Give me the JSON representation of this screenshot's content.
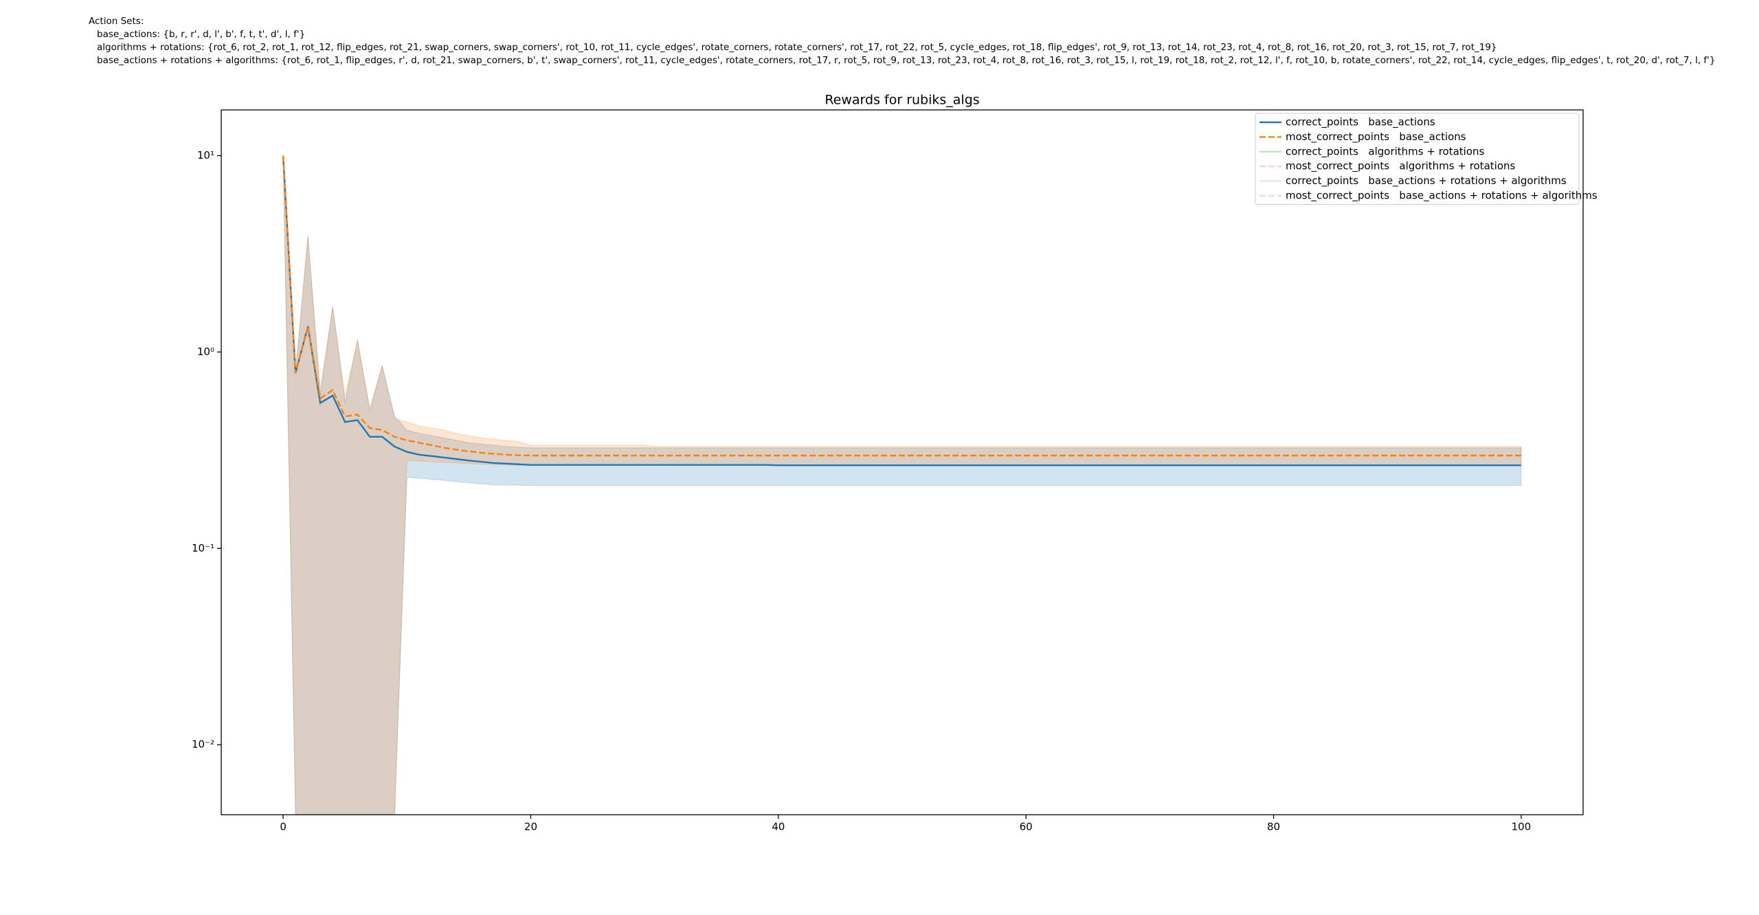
{
  "header": {
    "title": "Action Sets:",
    "lines": [
      "base_actions: {b, r, r', d, l', b', f, t, t', d', l, f'}",
      "algorithms + rotations: {rot_6, rot_2, rot_1, rot_12, flip_edges, rot_21, swap_corners, swap_corners', rot_10, rot_11, cycle_edges', rotate_corners, rotate_corners', rot_17, rot_22, rot_5, cycle_edges, rot_18, flip_edges', rot_9, rot_13, rot_14, rot_23, rot_4, rot_8, rot_16, rot_20, rot_3, rot_15, rot_7, rot_19}",
      "base_actions + rotations + algorithms: {rot_6, rot_1, flip_edges, r', d, rot_21, swap_corners, b', t', swap_corners', rot_11, cycle_edges', rotate_corners, rot_17, r, rot_5, rot_9, rot_13, rot_23, rot_4, rot_8, rot_16, rot_3, rot_15, l, rot_19, rot_18, rot_2, rot_12, l', f, rot_10, b, rotate_corners', rot_22, rot_14, cycle_edges, flip_edges', t, rot_20, d', rot_7, l, f'}"
    ]
  },
  "chart_data": {
    "type": "line",
    "title": "Rewards for rubiks_algs",
    "log_y": true,
    "legend": "upper right",
    "xlim": [
      -5,
      105
    ],
    "xticks": [
      0,
      20,
      40,
      60,
      80,
      100
    ],
    "ylim": [
      0.0044,
      17.1
    ],
    "yticks": [
      {
        "value": 10,
        "label": "10¹"
      },
      {
        "value": 1,
        "label": "10⁰"
      },
      {
        "value": 0.1,
        "label": "10⁻¹"
      },
      {
        "value": 0.01,
        "label": "10⁻²"
      }
    ],
    "x": [
      0,
      1,
      2,
      3,
      4,
      5,
      6,
      7,
      8,
      9,
      10,
      11,
      12,
      13,
      14,
      15,
      16,
      17,
      18,
      19,
      20,
      21,
      22,
      23,
      24,
      25,
      26,
      27,
      28,
      29,
      30,
      31,
      32,
      33,
      34,
      35,
      36,
      37,
      38,
      39,
      40,
      41,
      42,
      43,
      44,
      45,
      46,
      47,
      48,
      49,
      50,
      51,
      52,
      53,
      54,
      55,
      56,
      57,
      58,
      59,
      60,
      61,
      62,
      63,
      64,
      65,
      66,
      67,
      68,
      69,
      70,
      71,
      72,
      73,
      74,
      75,
      76,
      77,
      78,
      79,
      80,
      81,
      82,
      83,
      84,
      85,
      86,
      87,
      88,
      89,
      90,
      91,
      92,
      93,
      94,
      95,
      96,
      97,
      98,
      99,
      100
    ],
    "series": [
      {
        "name": "correct_points   base_actions",
        "color": "#1f77b4",
        "linestyle": "solid",
        "alpha": 1,
        "values": [
          10,
          0.78,
          1.35,
          0.55,
          0.6,
          0.44,
          0.45,
          0.37,
          0.37,
          0.33,
          0.31,
          0.3,
          0.295,
          0.29,
          0.285,
          0.28,
          0.276,
          0.272,
          0.27,
          0.268,
          0.266,
          0.266,
          0.266,
          0.266,
          0.266,
          0.266,
          0.266,
          0.266,
          0.266,
          0.266,
          0.266,
          0.266,
          0.266,
          0.266,
          0.266,
          0.266,
          0.266,
          0.266,
          0.266,
          0.266,
          0.265,
          0.265,
          0.265,
          0.265,
          0.265,
          0.265,
          0.265,
          0.265,
          0.265,
          0.265,
          0.265,
          0.265,
          0.265,
          0.265,
          0.265,
          0.265,
          0.265,
          0.265,
          0.265,
          0.265,
          0.265,
          0.265,
          0.265,
          0.265,
          0.265,
          0.265,
          0.265,
          0.265,
          0.265,
          0.265,
          0.265,
          0.265,
          0.265,
          0.265,
          0.265,
          0.265,
          0.265,
          0.265,
          0.265,
          0.265,
          0.265,
          0.265,
          0.265,
          0.265,
          0.265,
          0.265,
          0.265,
          0.265,
          0.265,
          0.265,
          0.265,
          0.265,
          0.265,
          0.265,
          0.265,
          0.265,
          0.265,
          0.265,
          0.265,
          0.265,
          0.265
        ],
        "lower": [
          10,
          0,
          0,
          0,
          0,
          0,
          0,
          0,
          0,
          0,
          0.23,
          0.228,
          0.225,
          0.222,
          0.219,
          0.216,
          0.213,
          0.211,
          0.21,
          0.21,
          0.209,
          0.209,
          0.209,
          0.209,
          0.209,
          0.209,
          0.209,
          0.209,
          0.209,
          0.209,
          0.209,
          0.209,
          0.209,
          0.209,
          0.209,
          0.209,
          0.209,
          0.209,
          0.209,
          0.209,
          0.209,
          0.209,
          0.209,
          0.209,
          0.209,
          0.209,
          0.209,
          0.209,
          0.209,
          0.209,
          0.209,
          0.209,
          0.209,
          0.209,
          0.209,
          0.209,
          0.209,
          0.209,
          0.209,
          0.209,
          0.209,
          0.209,
          0.209,
          0.209,
          0.209,
          0.209,
          0.209,
          0.209,
          0.209,
          0.209,
          0.209,
          0.209,
          0.209,
          0.209,
          0.209,
          0.209,
          0.209,
          0.209,
          0.209,
          0.209,
          0.209,
          0.209,
          0.209,
          0.209,
          0.209,
          0.209,
          0.209,
          0.209,
          0.209,
          0.209,
          0.209,
          0.209,
          0.209,
          0.209,
          0.209,
          0.209,
          0.209,
          0.209,
          0.209,
          0.209,
          0.209
        ],
        "upper": [
          10,
          0.78,
          3.9,
          0.6,
          1.7,
          0.55,
          1.15,
          0.5,
          0.85,
          0.47,
          0.4,
          0.385,
          0.375,
          0.365,
          0.355,
          0.345,
          0.34,
          0.335,
          0.33,
          0.327,
          0.325,
          0.325,
          0.325,
          0.325,
          0.325,
          0.325,
          0.325,
          0.325,
          0.325,
          0.325,
          0.325,
          0.325,
          0.325,
          0.325,
          0.325,
          0.325,
          0.325,
          0.325,
          0.325,
          0.325,
          0.325,
          0.325,
          0.325,
          0.325,
          0.325,
          0.325,
          0.325,
          0.325,
          0.325,
          0.325,
          0.325,
          0.325,
          0.325,
          0.325,
          0.325,
          0.325,
          0.325,
          0.325,
          0.325,
          0.325,
          0.325,
          0.325,
          0.325,
          0.325,
          0.325,
          0.325,
          0.325,
          0.325,
          0.325,
          0.325,
          0.325,
          0.325,
          0.325,
          0.325,
          0.325,
          0.325,
          0.325,
          0.325,
          0.325,
          0.325,
          0.325,
          0.325,
          0.325,
          0.325,
          0.325,
          0.325,
          0.325,
          0.325,
          0.325,
          0.325,
          0.325,
          0.325,
          0.325,
          0.325,
          0.325,
          0.325,
          0.325,
          0.325,
          0.325,
          0.325,
          0.325
        ]
      },
      {
        "name": "most_correct_points   base_actions",
        "color": "#ff7f0e",
        "linestyle": "dashed",
        "alpha": 1,
        "values": [
          10,
          0.78,
          1.35,
          0.58,
          0.64,
          0.47,
          0.48,
          0.41,
          0.4,
          0.37,
          0.355,
          0.345,
          0.335,
          0.325,
          0.318,
          0.312,
          0.307,
          0.303,
          0.3,
          0.298,
          0.297,
          0.297,
          0.297,
          0.297,
          0.297,
          0.297,
          0.297,
          0.297,
          0.297,
          0.297,
          0.297,
          0.297,
          0.297,
          0.297,
          0.297,
          0.297,
          0.297,
          0.297,
          0.297,
          0.297,
          0.297,
          0.297,
          0.297,
          0.297,
          0.297,
          0.297,
          0.297,
          0.297,
          0.297,
          0.297,
          0.297,
          0.297,
          0.297,
          0.297,
          0.297,
          0.297,
          0.297,
          0.297,
          0.297,
          0.297,
          0.297,
          0.297,
          0.297,
          0.297,
          0.297,
          0.297,
          0.297,
          0.297,
          0.297,
          0.297,
          0.297,
          0.297,
          0.297,
          0.297,
          0.297,
          0.297,
          0.297,
          0.297,
          0.297,
          0.297,
          0.297,
          0.297,
          0.297,
          0.297,
          0.297,
          0.297,
          0.297,
          0.297,
          0.297,
          0.297,
          0.297,
          0.297,
          0.297,
          0.297,
          0.297,
          0.297,
          0.297,
          0.297,
          0.297,
          0.297,
          0.297
        ],
        "lower": [
          10,
          0,
          0,
          0,
          0,
          0,
          0,
          0,
          0,
          0,
          0.28,
          0.278,
          0.276,
          0.274,
          0.272,
          0.27,
          0.268,
          0.267,
          0.266,
          0.265,
          0.265,
          0.265,
          0.265,
          0.265,
          0.265,
          0.265,
          0.265,
          0.265,
          0.265,
          0.265,
          0.265,
          0.265,
          0.265,
          0.265,
          0.265,
          0.265,
          0.265,
          0.265,
          0.265,
          0.265,
          0.265,
          0.265,
          0.265,
          0.265,
          0.265,
          0.265,
          0.265,
          0.265,
          0.265,
          0.265,
          0.265,
          0.265,
          0.265,
          0.265,
          0.265,
          0.265,
          0.265,
          0.265,
          0.265,
          0.265,
          0.265,
          0.265,
          0.265,
          0.265,
          0.265,
          0.265,
          0.265,
          0.265,
          0.265,
          0.265,
          0.265,
          0.265,
          0.265,
          0.265,
          0.265,
          0.265,
          0.265,
          0.265,
          0.265,
          0.265,
          0.265,
          0.265,
          0.265,
          0.265,
          0.265,
          0.265,
          0.265,
          0.265,
          0.265,
          0.265,
          0.265,
          0.265,
          0.265,
          0.265,
          0.265,
          0.265,
          0.265,
          0.265,
          0.265,
          0.265,
          0.265
        ],
        "upper": [
          10,
          0.78,
          3.9,
          0.65,
          1.7,
          0.6,
          1.15,
          0.52,
          0.85,
          0.46,
          0.44,
          0.42,
          0.41,
          0.4,
          0.385,
          0.375,
          0.365,
          0.36,
          0.355,
          0.35,
          0.335,
          0.335,
          0.335,
          0.335,
          0.335,
          0.335,
          0.335,
          0.335,
          0.335,
          0.335,
          0.33,
          0.33,
          0.33,
          0.33,
          0.33,
          0.33,
          0.33,
          0.33,
          0.33,
          0.33,
          0.33,
          0.33,
          0.33,
          0.33,
          0.33,
          0.33,
          0.33,
          0.33,
          0.33,
          0.33,
          0.33,
          0.33,
          0.33,
          0.33,
          0.33,
          0.33,
          0.33,
          0.33,
          0.33,
          0.33,
          0.33,
          0.33,
          0.33,
          0.33,
          0.33,
          0.33,
          0.33,
          0.33,
          0.33,
          0.33,
          0.33,
          0.33,
          0.33,
          0.33,
          0.33,
          0.33,
          0.33,
          0.33,
          0.33,
          0.33,
          0.33,
          0.33,
          0.33,
          0.33,
          0.33,
          0.33,
          0.33,
          0.33,
          0.33,
          0.33,
          0.33,
          0.33,
          0.33,
          0.33,
          0.33,
          0.33,
          0.33,
          0.33,
          0.33,
          0.33,
          0.33
        ]
      },
      {
        "name": "correct_points   algorithms + rotations",
        "color": "#2ca02c",
        "linestyle": "solid",
        "alpha": 0.3
      },
      {
        "name": "most_correct_points   algorithms + rotations",
        "color": "#d62728",
        "linestyle": "dashed",
        "alpha": 0.2
      },
      {
        "name": "correct_points   base_actions + rotations + algorithms",
        "color": "#9467bd",
        "linestyle": "solid",
        "alpha": 0.2
      },
      {
        "name": "most_correct_points   base_actions + rotations + algorithms",
        "color": "#8c564b",
        "linestyle": "dashed",
        "alpha": 0.2
      }
    ]
  }
}
